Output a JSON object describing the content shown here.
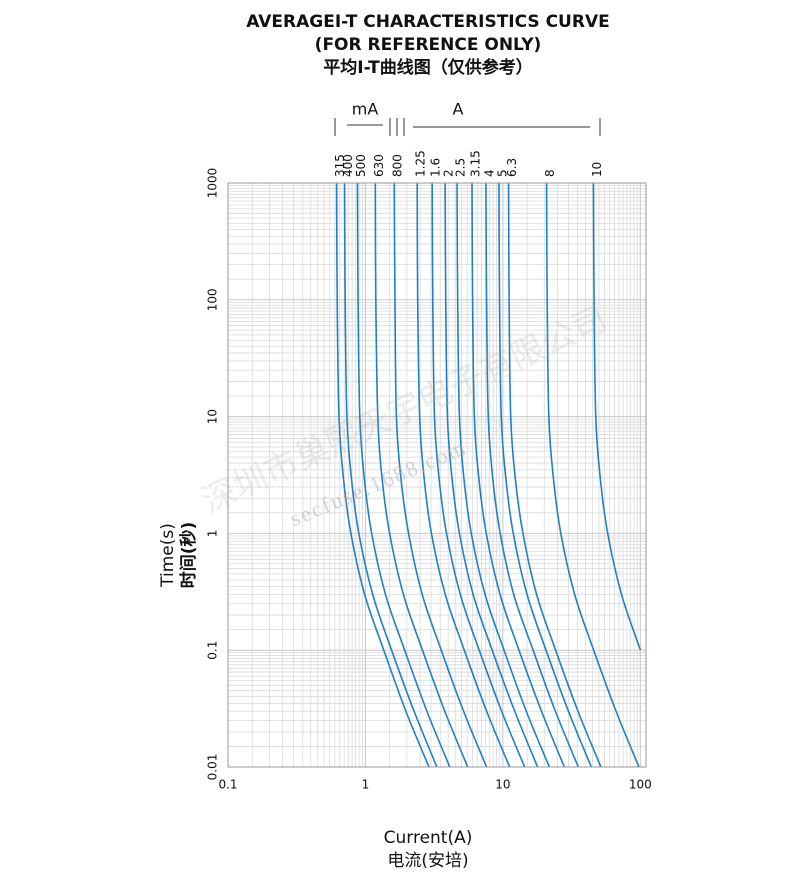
{
  "chart_data": {
    "type": "line",
    "title": "AVERAGEI-T CHARACTERISTICS CURVE",
    "subtitle": "(FOR REFERENCE ONLY)",
    "subtitle_cn": "平均I-T曲线图（仅供参考）",
    "y_label": "Time(s)",
    "y_label_cn": "时间(秒)",
    "x_label": "Current(A)",
    "x_label_cn": "电流(安培)",
    "unit_labels": [
      "mA",
      "A"
    ],
    "watermark": [
      "深圳市巢熙天宇电子有限公司",
      "secfuse.1688.com"
    ],
    "x_log": true,
    "y_log": true,
    "grid": true,
    "minor_grid": true,
    "xlim": [
      0.1,
      110
    ],
    "ylim": [
      0.01,
      1000
    ],
    "xticks": [
      0.1,
      1,
      10,
      100
    ],
    "yticks": [
      0.01,
      0.1,
      1,
      10,
      100,
      1000
    ],
    "series": [
      {
        "name": "315",
        "color": "#1f80c4",
        "x": [
          0.617,
          0.623,
          0.642,
          0.691,
          0.784,
          0.987,
          1.36,
          1.97,
          2.9
        ],
        "values": [
          1000,
          100,
          10,
          3,
          1,
          0.3,
          0.1,
          0.03,
          0.01
        ]
      },
      {
        "name": "400",
        "color": "#1f80c4",
        "x": [
          0.705,
          0.712,
          0.733,
          0.79,
          0.895,
          1.13,
          1.55,
          2.26,
          3.31
        ],
        "values": [
          1000,
          100,
          10,
          3,
          1,
          0.3,
          0.1,
          0.03,
          0.01
        ]
      },
      {
        "name": "500",
        "color": "#1f80c4",
        "x": [
          0.875,
          0.884,
          0.91,
          0.98,
          1.11,
          1.4,
          1.93,
          2.8,
          4.11
        ],
        "values": [
          1000,
          100,
          10,
          3,
          1,
          0.3,
          0.1,
          0.03,
          0.01
        ]
      },
      {
        "name": "630",
        "color": "#1f80c4",
        "x": [
          1.18,
          1.19,
          1.23,
          1.32,
          1.5,
          1.89,
          2.6,
          3.78,
          5.55
        ],
        "values": [
          1000,
          100,
          10,
          3,
          1,
          0.3,
          0.1,
          0.03,
          0.01
        ]
      },
      {
        "name": "800",
        "color": "#1f80c4",
        "x": [
          1.62,
          1.64,
          1.68,
          1.81,
          2.06,
          2.59,
          3.56,
          5.18,
          7.61
        ],
        "values": [
          1000,
          100,
          10,
          3,
          1,
          0.3,
          0.1,
          0.03,
          0.01
        ]
      },
      {
        "name": "1.25",
        "color": "#1f80c4",
        "x": [
          2.38,
          2.4,
          2.48,
          2.67,
          3.02,
          3.81,
          5.24,
          7.62,
          11.2
        ],
        "values": [
          1000,
          100,
          10,
          3,
          1,
          0.3,
          0.1,
          0.03,
          0.01
        ]
      },
      {
        "name": "1.6",
        "color": "#1f80c4",
        "x": [
          3.06,
          3.09,
          3.18,
          3.43,
          3.89,
          4.9,
          6.73,
          9.79,
          14.4
        ],
        "values": [
          1000,
          100,
          10,
          3,
          1,
          0.3,
          0.1,
          0.03,
          0.01
        ]
      },
      {
        "name": "2",
        "color": "#1f80c4",
        "x": [
          3.8,
          3.84,
          3.95,
          4.26,
          4.83,
          6.08,
          8.36,
          12.2,
          17.9
        ],
        "values": [
          1000,
          100,
          10,
          3,
          1,
          0.3,
          0.1,
          0.03,
          0.01
        ]
      },
      {
        "name": "2.5",
        "color": "#1f80c4",
        "x": [
          4.64,
          4.69,
          4.83,
          5.2,
          5.89,
          7.42,
          10.2,
          14.8,
          21.8
        ],
        "values": [
          1000,
          100,
          10,
          3,
          1,
          0.3,
          0.1,
          0.03,
          0.01
        ]
      },
      {
        "name": "3.15",
        "color": "#1f80c4",
        "x": [
          5.96,
          6.02,
          6.2,
          6.68,
          7.57,
          9.54,
          13.1,
          19.1,
          28
        ],
        "values": [
          1000,
          100,
          10,
          3,
          1,
          0.3,
          0.1,
          0.03,
          0.01
        ]
      },
      {
        "name": "4",
        "color": "#1f80c4",
        "x": [
          7.53,
          7.61,
          7.83,
          8.43,
          9.56,
          12,
          16.6,
          24.1,
          35.4
        ],
        "values": [
          1000,
          100,
          10,
          3,
          1,
          0.3,
          0.1,
          0.03,
          0.01
        ]
      },
      {
        "name": "5",
        "color": "#1f80c4",
        "x": [
          9.36,
          9.45,
          9.73,
          10.5,
          11.9,
          15,
          20.6,
          30,
          44
        ],
        "values": [
          1000,
          100,
          10,
          3,
          1,
          0.3,
          0.1,
          0.03,
          0.01
        ]
      },
      {
        "name": "6.3",
        "color": "#1f80c4",
        "x": [
          11,
          11.1,
          11.4,
          12.3,
          14,
          17.6,
          24.2,
          35.2,
          51.7
        ],
        "values": [
          1000,
          100,
          10,
          3,
          1,
          0.3,
          0.1,
          0.03,
          0.01
        ]
      },
      {
        "name": "8",
        "color": "#1f80c4",
        "x": [
          20.8,
          21,
          21.6,
          23.3,
          26.4,
          33.3,
          45.8,
          66.6,
          97.8
        ],
        "values": [
          1000,
          100,
          10,
          3,
          1,
          0.3,
          0.1,
          0.03,
          0.01
        ]
      },
      {
        "name": "10",
        "color": "#1f80c4",
        "x": [
          45.6,
          46.1,
          47.4,
          51.1,
          57.9,
          73,
          100.3
        ],
        "values": [
          1000,
          100,
          10,
          3,
          1,
          0.3,
          0.1
        ]
      }
    ]
  }
}
